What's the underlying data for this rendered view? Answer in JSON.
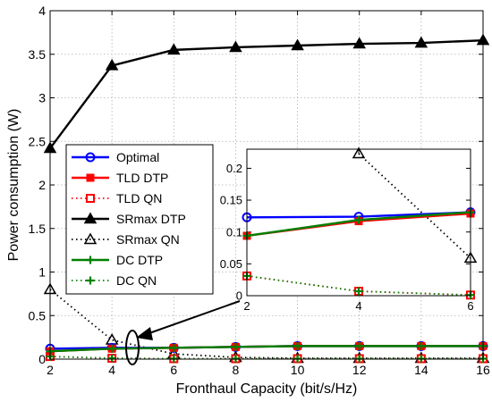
{
  "chart_data": [
    {
      "id": "main",
      "type": "line",
      "xlabel": "Fronthaul Capacity (bit/s/Hz)",
      "ylabel": "Power consumption (W)",
      "xlim": [
        2,
        16
      ],
      "ylim": [
        0,
        4
      ],
      "xticks": [
        2,
        4,
        6,
        8,
        10,
        12,
        14,
        16
      ],
      "yticks": [
        0,
        0.5,
        1,
        1.5,
        2,
        2.5,
        3,
        3.5,
        4
      ],
      "xtick_labels": [
        "2",
        "4",
        "6",
        "8",
        "10",
        "12",
        "14",
        "16"
      ],
      "ytick_labels": [
        "0",
        "0.5",
        "1",
        "1.5",
        "2",
        "2.5",
        "3",
        "3.5",
        "4"
      ],
      "grid": true,
      "legend_position": "left",
      "x": [
        2,
        4,
        6,
        8,
        10,
        12,
        14,
        16
      ],
      "series": [
        {
          "name": "Optimal",
          "color": "#0000ff",
          "dash": "solid",
          "marker": "circle-open",
          "values": [
            0.12,
            0.13,
            0.13,
            0.14,
            0.15,
            0.15,
            0.15,
            0.15
          ]
        },
        {
          "name": "TLD DTP",
          "color": "#ff0000",
          "dash": "solid",
          "marker": "square-filled",
          "values": [
            0.09,
            0.12,
            0.13,
            0.14,
            0.15,
            0.15,
            0.15,
            0.15
          ]
        },
        {
          "name": "TLD QN",
          "color": "#ff0000",
          "dash": "dotted",
          "marker": "square-open",
          "values": [
            0.03,
            0.01,
            0.005,
            0.005,
            0.005,
            0.005,
            0.005,
            0.005
          ]
        },
        {
          "name": "SRmax DTP",
          "color": "#000000",
          "dash": "solid",
          "marker": "triangle-filled",
          "values": [
            2.42,
            3.37,
            3.55,
            3.58,
            3.6,
            3.62,
            3.63,
            3.66
          ]
        },
        {
          "name": "SRmax QN",
          "color": "#000000",
          "dash": "dotted",
          "marker": "triangle-open",
          "values": [
            0.8,
            0.22,
            0.06,
            0.02,
            0.01,
            0.01,
            0.01,
            0.01
          ]
        },
        {
          "name": "DC DTP",
          "color": "#008000",
          "dash": "solid",
          "marker": "plus",
          "values": [
            0.09,
            0.12,
            0.13,
            0.14,
            0.15,
            0.15,
            0.15,
            0.15
          ]
        },
        {
          "name": "DC QN",
          "color": "#008000",
          "dash": "dotted",
          "marker": "plus",
          "values": [
            0.03,
            0.01,
            0.005,
            0.005,
            0.005,
            0.005,
            0.005,
            0.005
          ]
        }
      ]
    },
    {
      "id": "inset",
      "type": "line",
      "xlim": [
        2,
        6
      ],
      "ylim": [
        0,
        0.23
      ],
      "xticks": [
        2,
        4,
        6
      ],
      "yticks": [
        0,
        0.05,
        0.1,
        0.15,
        0.2
      ],
      "xtick_labels": [
        "2",
        "4",
        "6"
      ],
      "ytick_labels": [
        "0",
        "0.05",
        "0.1",
        "0.15",
        "0.2"
      ],
      "grid": false,
      "x": [
        2,
        4,
        6
      ],
      "series": [
        {
          "name": "Optimal",
          "values": [
            0.123,
            0.124,
            0.131
          ]
        },
        {
          "name": "TLD DTP",
          "values": [
            0.094,
            0.117,
            0.129
          ]
        },
        {
          "name": "TLD QN",
          "values": [
            0.031,
            0.007,
            0.001
          ]
        },
        {
          "name": "SRmax QN",
          "values": [
            null,
            0.223,
            0.059
          ]
        },
        {
          "name": "DC DTP",
          "values": [
            0.094,
            0.119,
            0.131
          ]
        },
        {
          "name": "DC QN",
          "values": [
            0.031,
            0.007,
            0.001
          ]
        }
      ]
    }
  ]
}
